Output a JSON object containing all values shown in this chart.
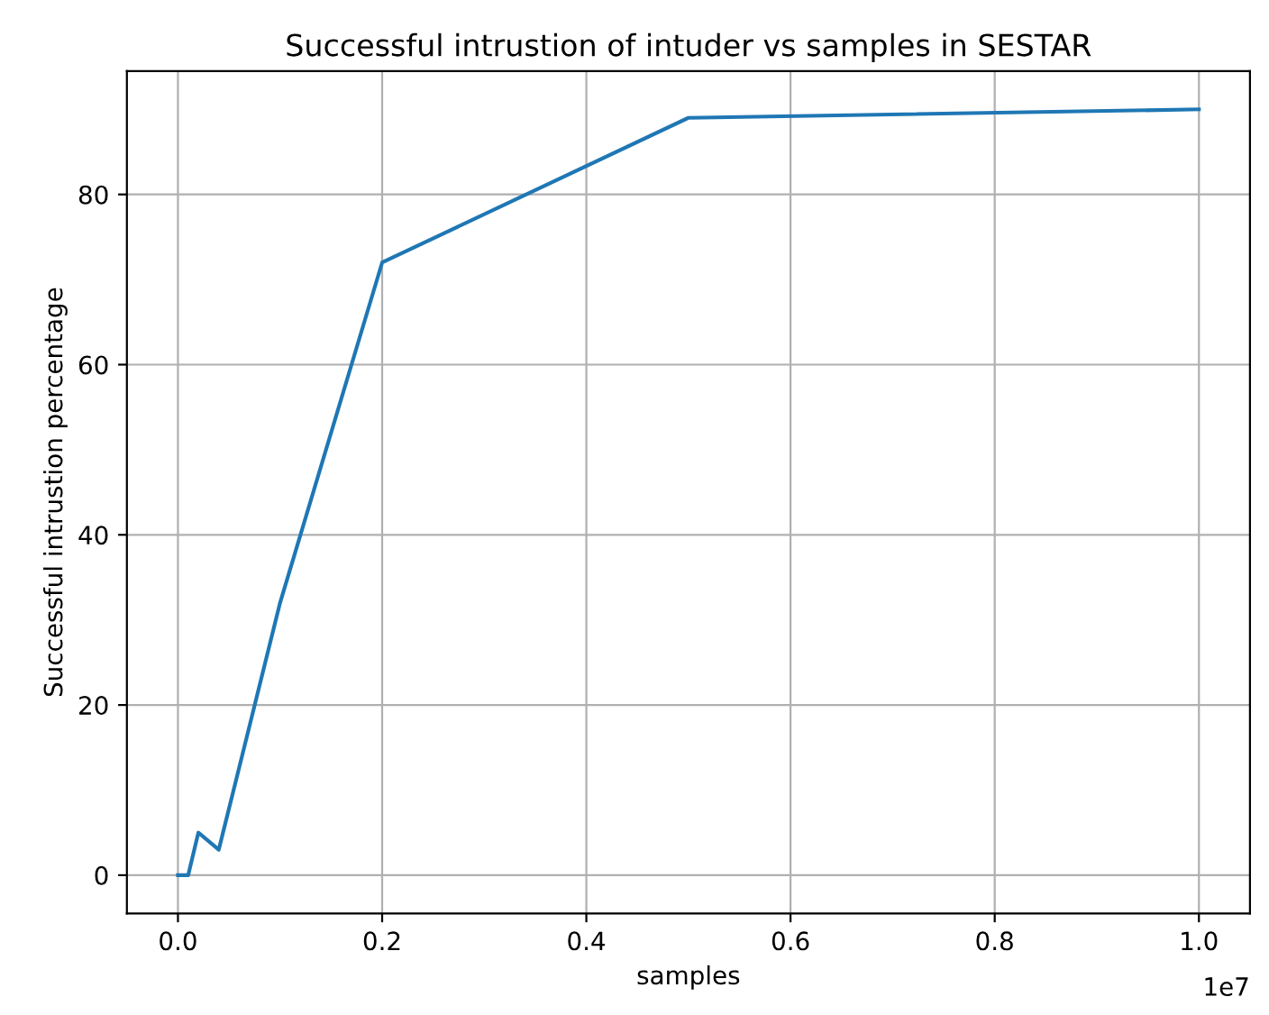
{
  "chart_data": {
    "type": "line",
    "title": "Successful intrustion of intuder vs samples in SESTAR",
    "xlabel": "samples",
    "ylabel": "Successful intrustion percentage",
    "x": [
      0,
      0.01,
      0.02,
      0.04,
      0.1,
      0.2,
      0.5,
      1.0
    ],
    "series": [
      {
        "color": "#1f77b4",
        "values": [
          0,
          0,
          5,
          3,
          32,
          72,
          89,
          90
        ]
      }
    ],
    "xlim": [
      -0.05,
      1.05
    ],
    "ylim": [
      -4.5,
      94.5
    ],
    "xticks": [
      {
        "value": 0,
        "label": "0.0"
      },
      0.2,
      0.4,
      0.6,
      0.8,
      {
        "value": 1.0,
        "label": "1.0"
      }
    ],
    "yticks": [
      0,
      20,
      40,
      60,
      80
    ],
    "annotations": [
      "1e7"
    ],
    "grid": true,
    "legend": false,
    "marker": "none",
    "line_style": "solid"
  }
}
